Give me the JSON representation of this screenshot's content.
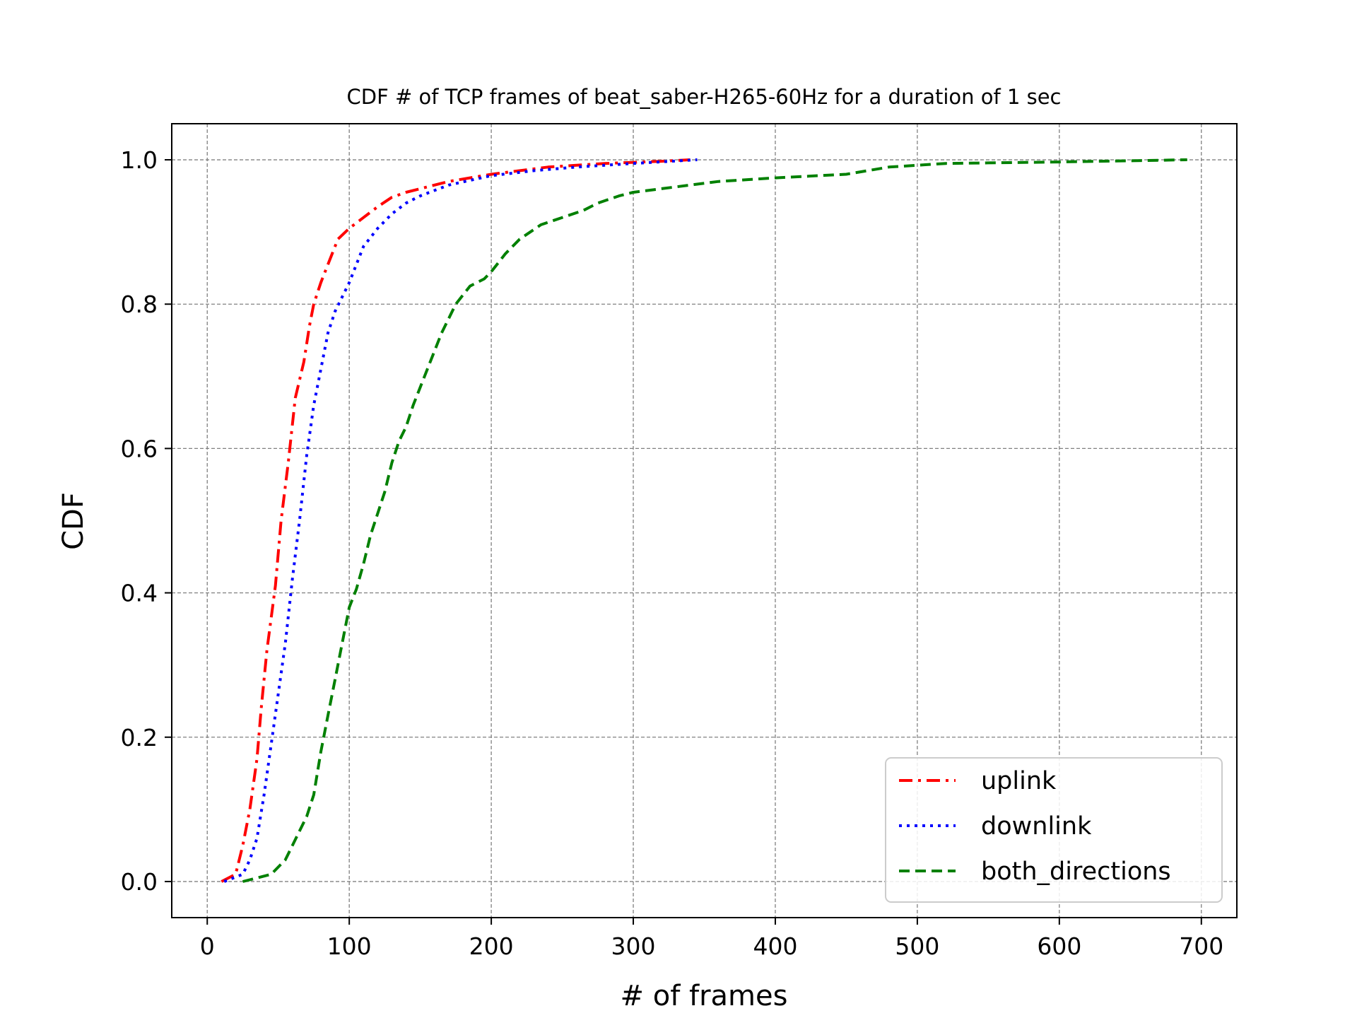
{
  "chart_data": {
    "type": "line",
    "title": "CDF # of TCP frames of beat_saber-H265-60Hz for a duration of 1 sec",
    "xlabel": "# of frames",
    "ylabel": "CDF",
    "xlim": [
      -25,
      725
    ],
    "ylim": [
      -0.05,
      1.05
    ],
    "xticks": [
      0,
      100,
      200,
      300,
      400,
      500,
      600,
      700
    ],
    "yticks": [
      0.0,
      0.2,
      0.4,
      0.6,
      0.8,
      1.0
    ],
    "xtick_labels": [
      "0",
      "100",
      "200",
      "300",
      "400",
      "500",
      "600",
      "700"
    ],
    "ytick_labels": [
      "0.0",
      "0.2",
      "0.4",
      "0.6",
      "0.8",
      "1.0"
    ],
    "grid": true,
    "grid_style": "dashed",
    "legend_position": "lower-right",
    "series": [
      {
        "name": "uplink",
        "color": "#ff0000",
        "dash": "dashdot",
        "x": [
          10,
          20,
          25,
          30,
          35,
          38,
          42,
          48,
          52,
          57,
          62,
          68,
          72,
          75,
          80,
          86,
          92,
          100,
          110,
          120,
          130,
          140,
          150,
          170,
          200,
          240,
          280,
          320,
          340
        ],
        "y": [
          0.0,
          0.01,
          0.05,
          0.1,
          0.17,
          0.24,
          0.32,
          0.41,
          0.5,
          0.58,
          0.67,
          0.72,
          0.77,
          0.8,
          0.83,
          0.86,
          0.89,
          0.905,
          0.92,
          0.935,
          0.948,
          0.955,
          0.96,
          0.97,
          0.98,
          0.99,
          0.995,
          0.998,
          1.0
        ]
      },
      {
        "name": "downlink",
        "color": "#0000ff",
        "dash": "dotted",
        "x": [
          12,
          25,
          30,
          35,
          40,
          45,
          50,
          55,
          60,
          65,
          70,
          75,
          80,
          85,
          90,
          100,
          110,
          120,
          130,
          140,
          150,
          170,
          200,
          230,
          260,
          300,
          345
        ],
        "y": [
          0.0,
          0.01,
          0.03,
          0.06,
          0.12,
          0.19,
          0.26,
          0.33,
          0.42,
          0.5,
          0.59,
          0.66,
          0.71,
          0.76,
          0.79,
          0.83,
          0.88,
          0.905,
          0.925,
          0.94,
          0.95,
          0.965,
          0.978,
          0.985,
          0.99,
          0.995,
          1.0
        ]
      },
      {
        "name": "both_directions",
        "color": "#008000",
        "dash": "dashed",
        "x": [
          25,
          45,
          55,
          60,
          65,
          70,
          75,
          80,
          85,
          90,
          95,
          100,
          105,
          110,
          115,
          120,
          125,
          130,
          135,
          140,
          145,
          155,
          165,
          175,
          185,
          195,
          200,
          210,
          220,
          235,
          265,
          275,
          290,
          300,
          320,
          340,
          360,
          400,
          450,
          480,
          520,
          600,
          690
        ],
        "y": [
          0.0,
          0.01,
          0.03,
          0.05,
          0.07,
          0.09,
          0.12,
          0.18,
          0.23,
          0.28,
          0.33,
          0.38,
          0.405,
          0.44,
          0.48,
          0.51,
          0.54,
          0.58,
          0.61,
          0.63,
          0.66,
          0.71,
          0.76,
          0.8,
          0.825,
          0.835,
          0.845,
          0.87,
          0.89,
          0.91,
          0.93,
          0.94,
          0.95,
          0.955,
          0.96,
          0.965,
          0.97,
          0.975,
          0.98,
          0.99,
          0.995,
          0.997,
          1.0
        ]
      }
    ]
  }
}
